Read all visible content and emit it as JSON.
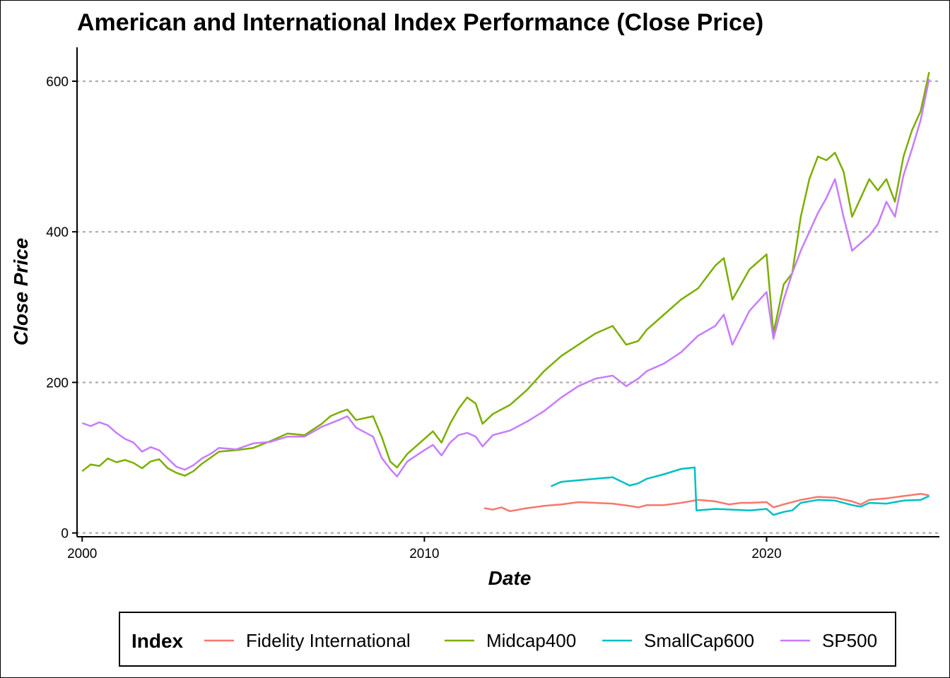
{
  "chart_data": {
    "type": "line",
    "title": "American and International Index Performance (Close Price)",
    "xlabel": "Date",
    "ylabel": "Close Price",
    "xlim": [
      1999.85,
      2025.05
    ],
    "ylim": [
      -5,
      645
    ],
    "x_ticks": [
      {
        "value": 2000,
        "label": "2000"
      },
      {
        "value": 2010,
        "label": "2010"
      },
      {
        "value": 2020,
        "label": "2020"
      }
    ],
    "y_ticks": [
      {
        "value": 0,
        "label": "0"
      },
      {
        "value": 200,
        "label": "200"
      },
      {
        "value": 400,
        "label": "400"
      },
      {
        "value": 600,
        "label": "600"
      }
    ],
    "grid": "horizontal dotted",
    "legend": {
      "title": "Index",
      "position": "bottom"
    },
    "series": [
      {
        "name": "Fidelity International",
        "color": "#F8766D",
        "points": [
          [
            2011.75,
            33
          ],
          [
            2012.0,
            31
          ],
          [
            2012.25,
            34
          ],
          [
            2012.5,
            29
          ],
          [
            2013.0,
            33
          ],
          [
            2013.5,
            36
          ],
          [
            2014.0,
            38
          ],
          [
            2014.5,
            41
          ],
          [
            2015.0,
            40
          ],
          [
            2015.5,
            39
          ],
          [
            2016.0,
            36
          ],
          [
            2016.25,
            34
          ],
          [
            2016.5,
            37
          ],
          [
            2017.0,
            37
          ],
          [
            2017.5,
            40
          ],
          [
            2018.0,
            44
          ],
          [
            2018.5,
            42
          ],
          [
            2018.9,
            38
          ],
          [
            2019.25,
            40
          ],
          [
            2019.5,
            40
          ],
          [
            2020.0,
            41
          ],
          [
            2020.2,
            34
          ],
          [
            2020.5,
            38
          ],
          [
            2021.0,
            44
          ],
          [
            2021.5,
            48
          ],
          [
            2022.0,
            47
          ],
          [
            2022.5,
            42
          ],
          [
            2022.75,
            38
          ],
          [
            2023.0,
            44
          ],
          [
            2023.5,
            46
          ],
          [
            2024.0,
            49
          ],
          [
            2024.5,
            52
          ],
          [
            2024.75,
            50
          ]
        ]
      },
      {
        "name": "Midcap400",
        "color": "#7CAE00",
        "points": [
          [
            2000.0,
            82
          ],
          [
            2000.25,
            91
          ],
          [
            2000.5,
            89
          ],
          [
            2000.75,
            99
          ],
          [
            2001.0,
            94
          ],
          [
            2001.25,
            97
          ],
          [
            2001.5,
            93
          ],
          [
            2001.75,
            86
          ],
          [
            2002.0,
            95
          ],
          [
            2002.25,
            98
          ],
          [
            2002.5,
            86
          ],
          [
            2002.75,
            80
          ],
          [
            2003.0,
            76
          ],
          [
            2003.25,
            82
          ],
          [
            2003.5,
            92
          ],
          [
            2003.75,
            100
          ],
          [
            2004.0,
            108
          ],
          [
            2004.5,
            110
          ],
          [
            2005.0,
            113
          ],
          [
            2005.5,
            122
          ],
          [
            2006.0,
            132
          ],
          [
            2006.5,
            130
          ],
          [
            2007.0,
            145
          ],
          [
            2007.25,
            155
          ],
          [
            2007.5,
            160
          ],
          [
            2007.75,
            164
          ],
          [
            2008.0,
            150
          ],
          [
            2008.5,
            155
          ],
          [
            2008.75,
            128
          ],
          [
            2009.0,
            95
          ],
          [
            2009.2,
            87
          ],
          [
            2009.5,
            105
          ],
          [
            2010.0,
            125
          ],
          [
            2010.25,
            135
          ],
          [
            2010.5,
            120
          ],
          [
            2010.75,
            145
          ],
          [
            2011.0,
            165
          ],
          [
            2011.25,
            180
          ],
          [
            2011.5,
            172
          ],
          [
            2011.7,
            145
          ],
          [
            2012.0,
            158
          ],
          [
            2012.5,
            170
          ],
          [
            2013.0,
            190
          ],
          [
            2013.5,
            215
          ],
          [
            2014.0,
            235
          ],
          [
            2014.5,
            250
          ],
          [
            2015.0,
            265
          ],
          [
            2015.5,
            275
          ],
          [
            2015.9,
            250
          ],
          [
            2016.25,
            255
          ],
          [
            2016.5,
            270
          ],
          [
            2017.0,
            290
          ],
          [
            2017.5,
            310
          ],
          [
            2018.0,
            325
          ],
          [
            2018.5,
            355
          ],
          [
            2018.75,
            365
          ],
          [
            2019.0,
            310
          ],
          [
            2019.5,
            350
          ],
          [
            2020.0,
            370
          ],
          [
            2020.2,
            265
          ],
          [
            2020.5,
            330
          ],
          [
            2020.75,
            345
          ],
          [
            2021.0,
            420
          ],
          [
            2021.25,
            470
          ],
          [
            2021.5,
            500
          ],
          [
            2021.75,
            495
          ],
          [
            2022.0,
            505
          ],
          [
            2022.25,
            480
          ],
          [
            2022.5,
            420
          ],
          [
            2022.75,
            445
          ],
          [
            2023.0,
            470
          ],
          [
            2023.25,
            455
          ],
          [
            2023.5,
            470
          ],
          [
            2023.75,
            440
          ],
          [
            2024.0,
            500
          ],
          [
            2024.25,
            535
          ],
          [
            2024.5,
            560
          ],
          [
            2024.75,
            612
          ]
        ]
      },
      {
        "name": "SmallCap600",
        "color": "#00BFC4",
        "points": [
          [
            2013.7,
            62
          ],
          [
            2014.0,
            68
          ],
          [
            2014.5,
            70
          ],
          [
            2015.0,
            72
          ],
          [
            2015.5,
            74
          ],
          [
            2016.0,
            63
          ],
          [
            2016.25,
            66
          ],
          [
            2016.5,
            72
          ],
          [
            2017.0,
            78
          ],
          [
            2017.5,
            85
          ],
          [
            2017.9,
            87
          ],
          [
            2017.95,
            30
          ],
          [
            2018.5,
            32
          ],
          [
            2019.0,
            31
          ],
          [
            2019.5,
            30
          ],
          [
            2020.0,
            32
          ],
          [
            2020.2,
            24
          ],
          [
            2020.5,
            28
          ],
          [
            2020.75,
            30
          ],
          [
            2021.0,
            40
          ],
          [
            2021.5,
            44
          ],
          [
            2022.0,
            43
          ],
          [
            2022.5,
            37
          ],
          [
            2022.75,
            35
          ],
          [
            2023.0,
            40
          ],
          [
            2023.5,
            39
          ],
          [
            2024.0,
            43
          ],
          [
            2024.5,
            44
          ],
          [
            2024.75,
            49
          ]
        ]
      },
      {
        "name": "SP500",
        "color": "#C77CFF",
        "points": [
          [
            2000.0,
            146
          ],
          [
            2000.25,
            142
          ],
          [
            2000.5,
            147
          ],
          [
            2000.75,
            143
          ],
          [
            2001.0,
            133
          ],
          [
            2001.25,
            125
          ],
          [
            2001.5,
            120
          ],
          [
            2001.75,
            108
          ],
          [
            2002.0,
            114
          ],
          [
            2002.25,
            110
          ],
          [
            2002.5,
            99
          ],
          [
            2002.75,
            88
          ],
          [
            2003.0,
            84
          ],
          [
            2003.25,
            90
          ],
          [
            2003.5,
            99
          ],
          [
            2003.75,
            105
          ],
          [
            2004.0,
            113
          ],
          [
            2004.5,
            111
          ],
          [
            2005.0,
            119
          ],
          [
            2005.5,
            121
          ],
          [
            2006.0,
            128
          ],
          [
            2006.5,
            128
          ],
          [
            2007.0,
            141
          ],
          [
            2007.5,
            150
          ],
          [
            2007.75,
            155
          ],
          [
            2008.0,
            140
          ],
          [
            2008.5,
            128
          ],
          [
            2008.75,
            100
          ],
          [
            2009.0,
            85
          ],
          [
            2009.2,
            75
          ],
          [
            2009.5,
            95
          ],
          [
            2010.0,
            110
          ],
          [
            2010.25,
            117
          ],
          [
            2010.5,
            103
          ],
          [
            2010.75,
            120
          ],
          [
            2011.0,
            130
          ],
          [
            2011.25,
            133
          ],
          [
            2011.5,
            128
          ],
          [
            2011.7,
            115
          ],
          [
            2012.0,
            130
          ],
          [
            2012.5,
            136
          ],
          [
            2013.0,
            148
          ],
          [
            2013.5,
            162
          ],
          [
            2014.0,
            180
          ],
          [
            2014.5,
            195
          ],
          [
            2015.0,
            205
          ],
          [
            2015.5,
            209
          ],
          [
            2015.9,
            195
          ],
          [
            2016.25,
            205
          ],
          [
            2016.5,
            215
          ],
          [
            2017.0,
            225
          ],
          [
            2017.5,
            240
          ],
          [
            2018.0,
            262
          ],
          [
            2018.5,
            275
          ],
          [
            2018.75,
            290
          ],
          [
            2019.0,
            250
          ],
          [
            2019.5,
            295
          ],
          [
            2020.0,
            320
          ],
          [
            2020.2,
            258
          ],
          [
            2020.5,
            310
          ],
          [
            2020.75,
            345
          ],
          [
            2021.0,
            375
          ],
          [
            2021.5,
            425
          ],
          [
            2021.75,
            445
          ],
          [
            2022.0,
            470
          ],
          [
            2022.25,
            420
          ],
          [
            2022.5,
            375
          ],
          [
            2022.75,
            385
          ],
          [
            2023.0,
            395
          ],
          [
            2023.25,
            410
          ],
          [
            2023.5,
            440
          ],
          [
            2023.75,
            420
          ],
          [
            2024.0,
            475
          ],
          [
            2024.25,
            510
          ],
          [
            2024.5,
            548
          ],
          [
            2024.75,
            603
          ]
        ]
      }
    ]
  }
}
